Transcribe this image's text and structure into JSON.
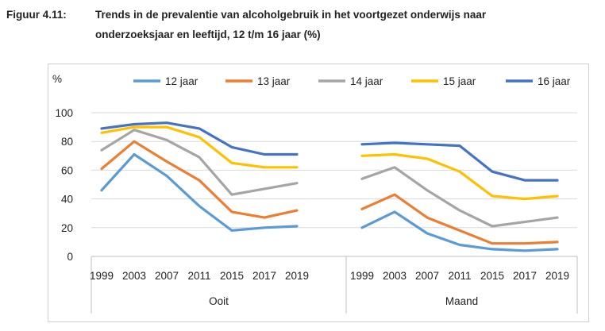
{
  "figure": {
    "label": "Figuur 4.11:",
    "title_line1": "Trends in de prevalentie van alcoholgebruik in het voortgezet onderwijs naar",
    "title_line2": "onderzoeksjaar en leeftijd, 12 t/m 16 jaar (%)"
  },
  "chart_data": {
    "type": "line",
    "ylabel": "%",
    "ylim": [
      0,
      100
    ],
    "yticks": [
      0,
      20,
      40,
      60,
      80,
      100
    ],
    "grid": true,
    "legend": "top",
    "groups": [
      {
        "name": "Ooit",
        "x": [
          "1999",
          "2003",
          "2007",
          "2011",
          "2015",
          "2017",
          "2019"
        ]
      },
      {
        "name": "Maand",
        "x": [
          "1999",
          "2003",
          "2007",
          "2011",
          "2015",
          "2017",
          "2019"
        ]
      }
    ],
    "series": [
      {
        "name": "12 jaar",
        "color": "#5b9bd5",
        "ooit": [
          46,
          71,
          56,
          35,
          18,
          20,
          21
        ],
        "maand": [
          20,
          31,
          16,
          8,
          5,
          4,
          5
        ]
      },
      {
        "name": "13 jaar",
        "color": "#ed7d31",
        "ooit": [
          61,
          80,
          66,
          53,
          31,
          27,
          32
        ],
        "maand": [
          33,
          43,
          27,
          18,
          9,
          9,
          10
        ]
      },
      {
        "name": "14 jaar",
        "color": "#a5a5a5",
        "ooit": [
          74,
          88,
          81,
          69,
          43,
          47,
          51
        ],
        "maand": [
          54,
          62,
          46,
          32,
          21,
          24,
          27
        ]
      },
      {
        "name": "15 jaar",
        "color": "#ffc000",
        "ooit": [
          86,
          90,
          90,
          83,
          65,
          62,
          62
        ],
        "maand": [
          70,
          71,
          68,
          59,
          42,
          40,
          42
        ]
      },
      {
        "name": "16 jaar",
        "color": "#4472c4",
        "ooit": [
          89,
          92,
          93,
          89,
          76,
          71,
          71
        ],
        "maand": [
          78,
          79,
          78,
          77,
          59,
          53,
          53
        ]
      }
    ]
  }
}
